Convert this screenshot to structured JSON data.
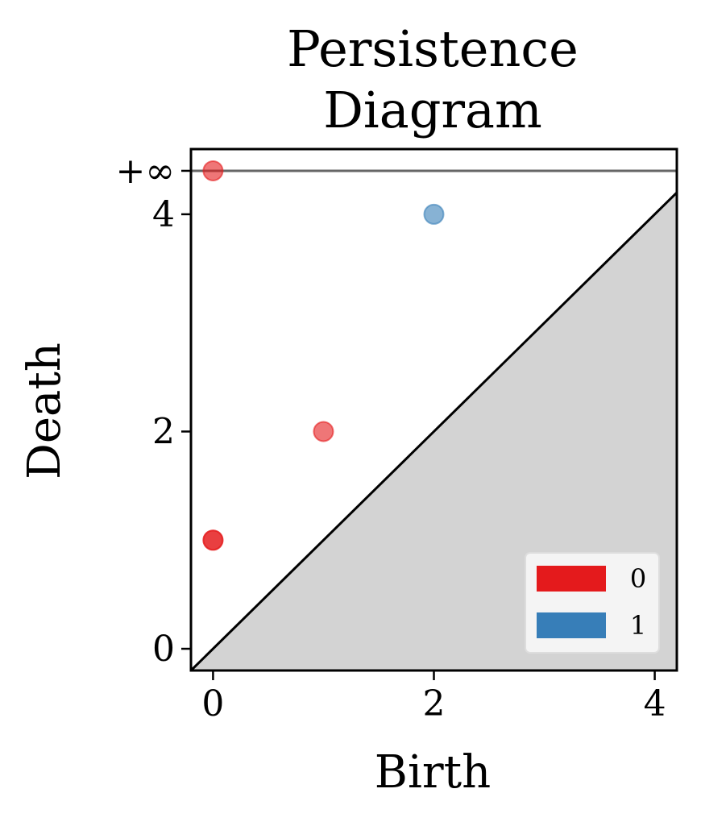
{
  "chart_data": {
    "type": "scatter",
    "title_lines": [
      "Persistence",
      "Diagram"
    ],
    "xlabel": "Birth",
    "ylabel": "Death",
    "xlim": [
      -0.2,
      4.2
    ],
    "ylim": [
      -0.2,
      4.6
    ],
    "x_ticks": [
      0,
      2,
      4
    ],
    "y_ticks": [
      0,
      2,
      4
    ],
    "x_tick_labels": [
      "0",
      "2",
      "4"
    ],
    "y_tick_labels": [
      "0",
      "2",
      "4"
    ],
    "infinity_label": "+∞",
    "infinity_value": 4.4,
    "diagonal": true,
    "below_diagonal_fill": "#d3d3d3",
    "series": [
      {
        "name": "0",
        "color": "#e41a1c",
        "points": [
          {
            "x": 0,
            "y": 1
          },
          {
            "x": 0,
            "y": 1
          },
          {
            "x": 1,
            "y": 2
          },
          {
            "x": 0,
            "y": "inf"
          }
        ]
      },
      {
        "name": "1",
        "color": "#377eb8",
        "points": [
          {
            "x": 2,
            "y": 4
          }
        ]
      }
    ],
    "legend": {
      "placement": "lower-right",
      "entries": [
        {
          "label": "0",
          "color": "#e41a1c"
        },
        {
          "label": "1",
          "color": "#377eb8"
        }
      ]
    }
  }
}
